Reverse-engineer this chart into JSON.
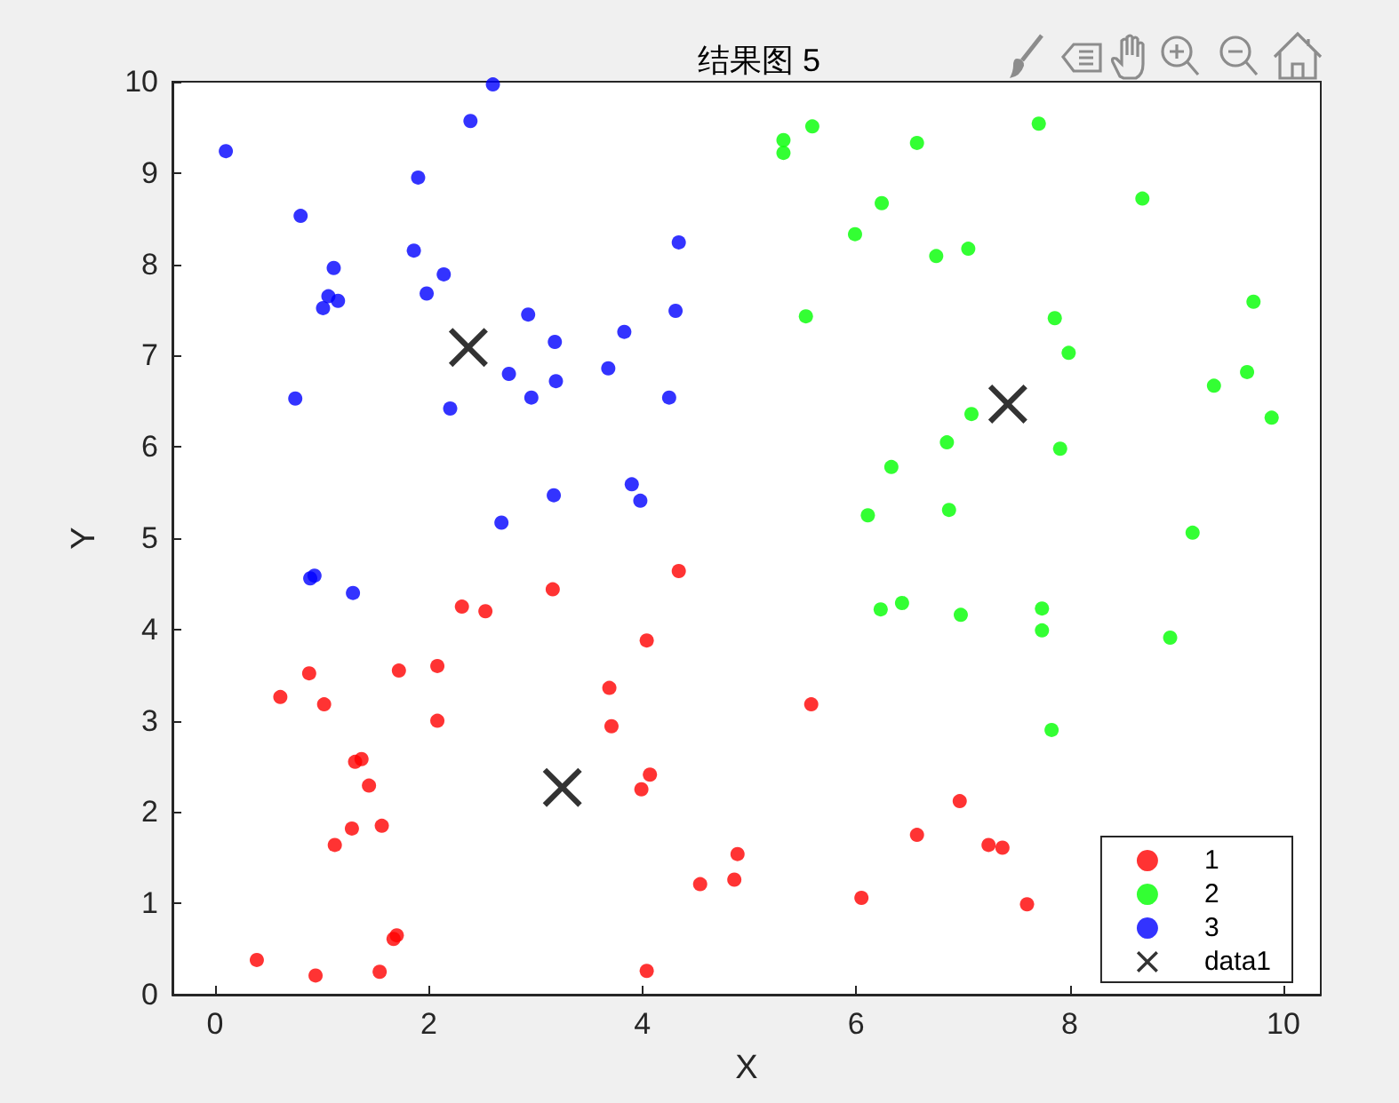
{
  "chart_data": {
    "type": "scatter",
    "title": "结果图 5",
    "xlabel": "X",
    "ylabel": "Y",
    "xlim": [
      -0.4,
      10.35
    ],
    "ylim": [
      0,
      10
    ],
    "xticks": [
      0,
      2,
      4,
      6,
      8,
      10
    ],
    "yticks": [
      0,
      1,
      2,
      3,
      4,
      5,
      6,
      7,
      8,
      9,
      10
    ],
    "grid": false,
    "legend": "bottom right",
    "marker": "circle",
    "series": [
      {
        "name": "1",
        "color": "#ff0000",
        "x": [
          4.34,
          3.16,
          2.31,
          2.53,
          4.04,
          0.88,
          1.72,
          2.08,
          0.61,
          1.02,
          3.69,
          2.08,
          3.71,
          1.31,
          1.37,
          1.44,
          4.07,
          3.99,
          1.28,
          1.56,
          1.12,
          4.89,
          4.86,
          4.54,
          1.67,
          1.7,
          0.39,
          0.94,
          1.54,
          4.04,
          5.58,
          6.97,
          6.57,
          7.24,
          7.37,
          6.05,
          7.6
        ],
        "values": [
          4.64,
          4.44,
          4.25,
          4.2,
          3.88,
          3.52,
          3.55,
          3.6,
          3.26,
          3.18,
          3.36,
          3.0,
          2.94,
          2.55,
          2.58,
          2.29,
          2.41,
          2.25,
          1.82,
          1.85,
          1.64,
          1.54,
          1.26,
          1.21,
          0.61,
          0.65,
          0.38,
          0.21,
          0.25,
          0.26,
          3.18,
          2.12,
          1.75,
          1.64,
          1.61,
          1.06,
          0.99
        ]
      },
      {
        "name": "2",
        "color": "#00ff00",
        "x": [
          5.32,
          5.32,
          5.59,
          6.57,
          7.71,
          6.24,
          8.68,
          5.99,
          6.75,
          7.05,
          5.53,
          7.86,
          9.72,
          7.99,
          9.66,
          9.35,
          9.89,
          7.08,
          6.85,
          7.91,
          6.33,
          6.11,
          6.87,
          9.15,
          6.23,
          6.43,
          6.98,
          7.74,
          7.74,
          8.94,
          7.83
        ],
        "values": [
          9.36,
          9.22,
          9.51,
          9.33,
          9.54,
          8.67,
          8.72,
          8.33,
          8.09,
          8.17,
          7.43,
          7.41,
          7.59,
          7.03,
          6.82,
          6.67,
          6.32,
          6.36,
          6.05,
          5.98,
          5.78,
          5.25,
          5.31,
          5.06,
          4.22,
          4.29,
          4.16,
          4.23,
          3.99,
          3.91,
          2.9
        ]
      },
      {
        "name": "3",
        "color": "#0000ff",
        "x": [
          0.1,
          2.6,
          2.39,
          1.9,
          0.8,
          4.34,
          1.86,
          1.11,
          2.14,
          1.98,
          1.06,
          1.15,
          1.01,
          4.31,
          2.93,
          3.83,
          3.18,
          3.68,
          2.75,
          3.19,
          0.75,
          2.96,
          4.25,
          2.2,
          3.9,
          3.17,
          3.98,
          2.68,
          0.89,
          0.93,
          1.29
        ],
        "values": [
          9.24,
          9.97,
          9.57,
          8.95,
          8.53,
          8.24,
          8.15,
          7.96,
          7.89,
          7.68,
          7.65,
          7.6,
          7.52,
          7.49,
          7.45,
          7.26,
          7.15,
          6.86,
          6.8,
          6.72,
          6.53,
          6.54,
          6.54,
          6.42,
          5.59,
          5.47,
          5.41,
          5.17,
          4.56,
          4.59,
          4.4
        ]
      },
      {
        "name": "data1",
        "color": "#000000",
        "marker": "cross",
        "x": [
          3.25,
          7.42,
          2.37
        ],
        "values": [
          2.27,
          6.47,
          7.09
        ]
      }
    ]
  }
}
